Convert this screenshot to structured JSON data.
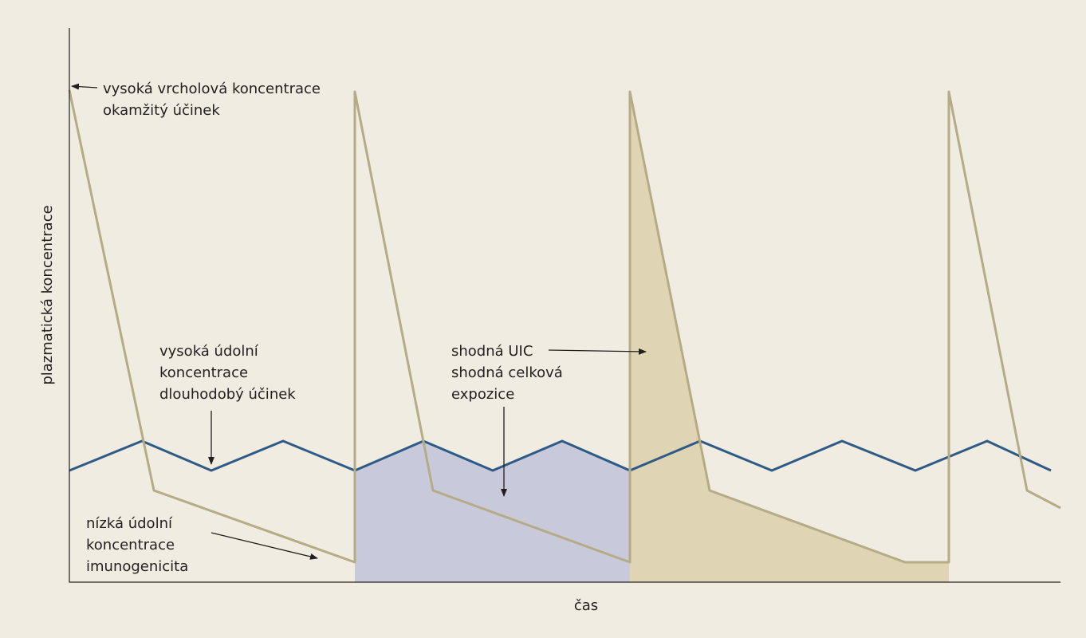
{
  "axes": {
    "y_label": "plazmatická koncentrace",
    "x_label": "čas"
  },
  "annotations": [
    {
      "lines": [
        "vysoká vrcholová koncentrace",
        "okamžitý účinek"
      ]
    },
    {
      "lines": [
        "vysoká údolní",
        "koncentrace",
        "dlouhodobý účinek"
      ]
    },
    {
      "lines": [
        "shodná UIC",
        "shodná celková",
        "expozice"
      ]
    },
    {
      "lines": [
        "nízká údolní",
        "koncentrace",
        "imunogenicita"
      ]
    }
  ]
}
